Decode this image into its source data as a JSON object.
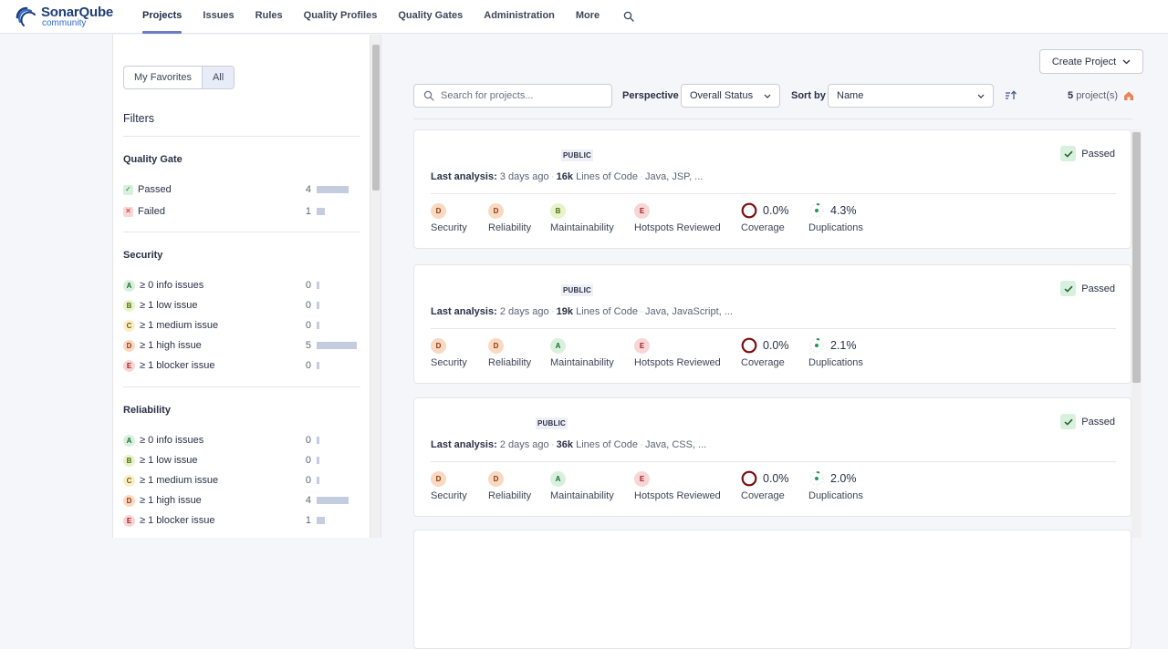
{
  "brand": {
    "name": "SonarQube",
    "edition": "community"
  },
  "nav": {
    "items": [
      {
        "label": "Projects",
        "active": true
      },
      {
        "label": "Issues"
      },
      {
        "label": "Rules"
      },
      {
        "label": "Quality Profiles"
      },
      {
        "label": "Quality Gates"
      },
      {
        "label": "Administration"
      },
      {
        "label": "More"
      }
    ],
    "search_icon": "search-icon"
  },
  "sidebar": {
    "toggle": {
      "favorites": "My Favorites",
      "all": "All",
      "selected": "All"
    },
    "filters_title": "Filters",
    "quality_gate": {
      "title": "Quality Gate",
      "rows": [
        {
          "label": "Passed",
          "count": "4",
          "fraction": 0.8
        },
        {
          "label": "Failed",
          "count": "1",
          "fraction": 0.2
        }
      ]
    },
    "security": {
      "title": "Security",
      "rows": [
        {
          "rating": "A",
          "label": "≥ 0 info issues",
          "count": "0",
          "fraction": 0
        },
        {
          "rating": "B",
          "label": "≥ 1 low issue",
          "count": "0",
          "fraction": 0
        },
        {
          "rating": "C",
          "label": "≥ 1 medium issue",
          "count": "0",
          "fraction": 0
        },
        {
          "rating": "D",
          "label": "≥ 1 high issue",
          "count": "5",
          "fraction": 1
        },
        {
          "rating": "E",
          "label": "≥ 1 blocker issue",
          "count": "0",
          "fraction": 0
        }
      ]
    },
    "reliability": {
      "title": "Reliability",
      "rows": [
        {
          "rating": "A",
          "label": "≥ 0 info issues",
          "count": "0",
          "fraction": 0
        },
        {
          "rating": "B",
          "label": "≥ 1 low issue",
          "count": "0",
          "fraction": 0
        },
        {
          "rating": "C",
          "label": "≥ 1 medium issue",
          "count": "0",
          "fraction": 0
        },
        {
          "rating": "D",
          "label": "≥ 1 high issue",
          "count": "4",
          "fraction": 0.8
        },
        {
          "rating": "E",
          "label": "≥ 1 blocker issue",
          "count": "1",
          "fraction": 0.2
        }
      ]
    }
  },
  "toolbar": {
    "create_project": "Create Project",
    "search_placeholder": "Search for projects...",
    "perspective_label": "Perspective",
    "perspective_value": "Overall Status",
    "sort_label": "Sort by",
    "sort_value": "Name",
    "count": "5",
    "count_suffix": "project(s)"
  },
  "projects": [
    {
      "badge": "PUBLIC",
      "status": "Passed",
      "analysis_label": "Last analysis:",
      "analysis_value": "3 days ago",
      "loc_value": "16k",
      "loc_label": "Lines of Code",
      "languages": "Java, JSP, ...",
      "security": "D",
      "reliability": "D",
      "maintainability": "B",
      "hotspots": "E",
      "coverage": "0.0%",
      "duplications": "4.3%"
    },
    {
      "badge": "PUBLIC",
      "status": "Passed",
      "analysis_label": "Last analysis:",
      "analysis_value": "2 days ago",
      "loc_value": "19k",
      "loc_label": "Lines of Code",
      "languages": "Java, JavaScript, ...",
      "security": "D",
      "reliability": "D",
      "maintainability": "A",
      "hotspots": "E",
      "coverage": "0.0%",
      "duplications": "2.1%"
    },
    {
      "badge": "PUBLIC",
      "status": "Passed",
      "analysis_label": "Last analysis:",
      "analysis_value": "2 days ago",
      "loc_value": "36k",
      "loc_label": "Lines of Code",
      "languages": "Java, CSS, ...",
      "security": "D",
      "reliability": "D",
      "maintainability": "A",
      "hotspots": "E",
      "coverage": "0.0%",
      "duplications": "2.0%"
    }
  ],
  "measure_labels": {
    "security": "Security",
    "reliability": "Reliability",
    "maintainability": "Maintainability",
    "hotspots": "Hotspots Reviewed",
    "coverage": "Coverage",
    "duplications": "Duplications"
  },
  "colors": {
    "accent": "#6a7bc7",
    "coverage_ring": "#7a1010",
    "duplication_dot": "#1d9a53",
    "passed_green": "#1d7a34"
  }
}
